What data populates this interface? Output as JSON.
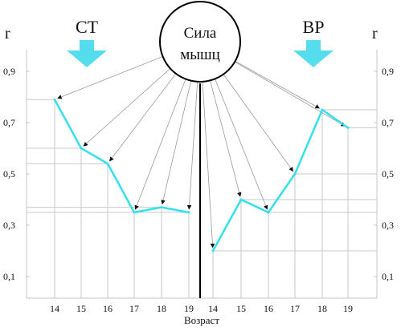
{
  "chart_data": {
    "type": "line",
    "x_ticks": [
      "14",
      "15",
      "16",
      "17",
      "18",
      "19"
    ],
    "y_ticks": [
      "0,1",
      "0,3",
      "0,5",
      "0,7",
      "0,9"
    ],
    "ylim": [
      0.0,
      1.0
    ],
    "y_axis_letter": "r",
    "xlabel": "Возраст",
    "center_label": [
      "Сила",
      "мышц"
    ],
    "line_color": "#33e0ec",
    "arrow_color": "#55ddee",
    "panels": [
      {
        "label": "СТ",
        "y_axis_side": "left",
        "x": [
          14,
          15,
          16,
          17,
          18,
          19
        ],
        "values": [
          0.79,
          0.6,
          0.54,
          0.35,
          0.37,
          0.35
        ]
      },
      {
        "label": "ВР",
        "y_axis_side": "right",
        "x": [
          14,
          15,
          16,
          17,
          18,
          19
        ],
        "values": [
          0.2,
          0.4,
          0.35,
          0.5,
          0.75,
          0.68
        ]
      }
    ],
    "grid": true,
    "legend": "none"
  }
}
